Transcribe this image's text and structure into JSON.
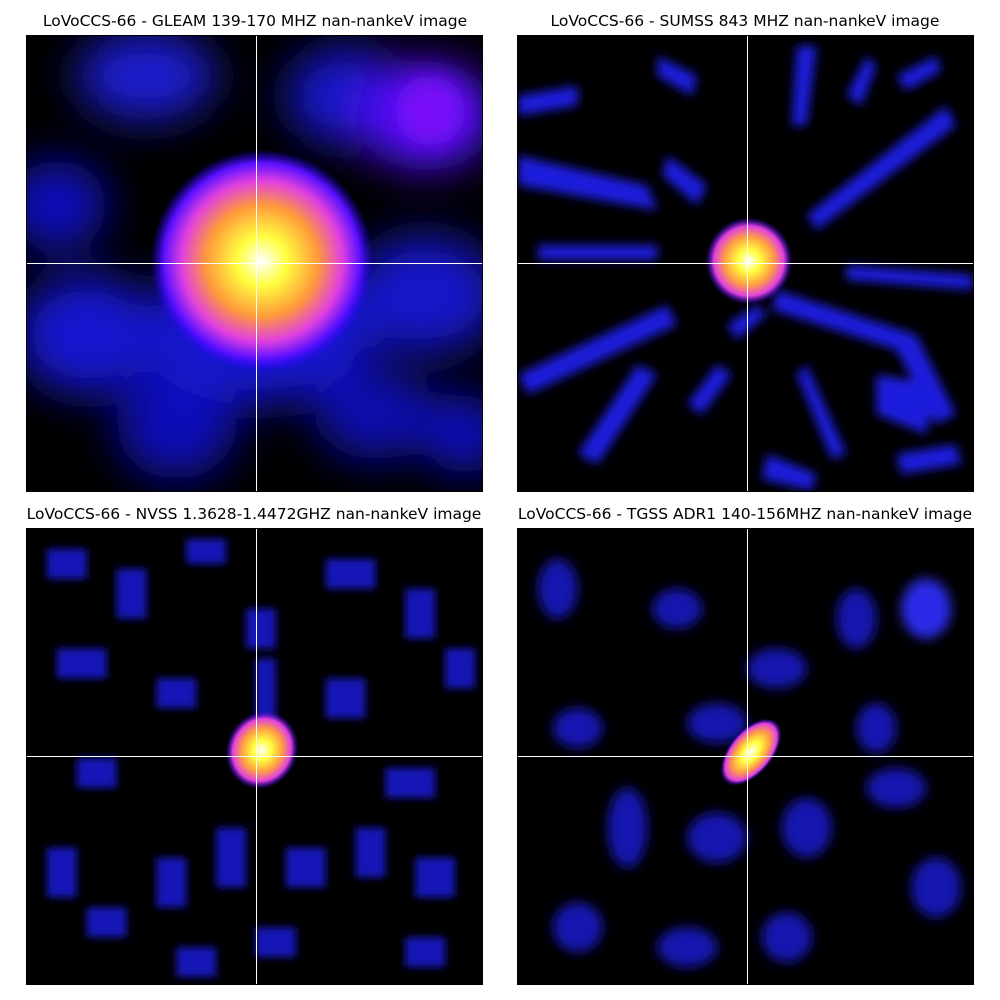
{
  "panels": [
    {
      "title": "LoVoCCS-66 -  GLEAM 139-170 MHZ nan-nankeV image",
      "survey": "GLEAM",
      "colormap": "gnuplot2"
    },
    {
      "title": "LoVoCCS-66 -  SUMSS 843 MHZ nan-nankeV image",
      "survey": "SUMSS",
      "colormap": "gnuplot2"
    },
    {
      "title": "LoVoCCS-66 -  NVSS 1.3628-1.4472GHZ nan-nankeV image",
      "survey": "NVSS",
      "colormap": "gnuplot2"
    },
    {
      "title": "LoVoCCS-66 -  TGSS ADR1 140-156MHZ nan-nankeV image",
      "survey": "TGSS",
      "colormap": "gnuplot2"
    }
  ],
  "colors": {
    "background": "#000000",
    "crosshair": "#ffffff",
    "low": "#0000ff",
    "mid": "#ff00ff",
    "high": "#ffff00",
    "peak": "#ffffff"
  }
}
